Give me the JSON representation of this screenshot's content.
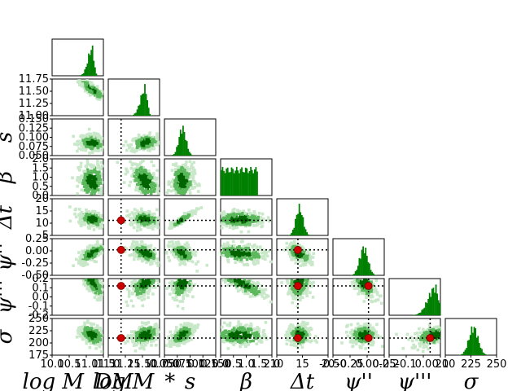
{
  "chart_data": {
    "type": "corner",
    "parameters": [
      "logM_DM",
      "logM_*",
      "s",
      "β",
      "Δt",
      "ψ''",
      "ψ'''",
      "σ"
    ],
    "axis_labels_x": [
      "log M_DM",
      "log M_*",
      "s",
      "β",
      "Δt",
      "ψ''",
      "ψ'''",
      "σ"
    ],
    "axis_labels_y": [
      "",
      "",
      "s",
      "β",
      "Δt",
      "ψ''",
      "ψ'''",
      "σ"
    ],
    "ranges": {
      "logM_DM": [
        10.0,
        11.5
      ],
      "logM_*": [
        11.0,
        11.8
      ],
      "s": [
        0.05,
        0.15
      ],
      "β": [
        0.0,
        2.0
      ],
      "Δt": [
        3,
        20
      ],
      "ψ''": [
        -0.5,
        0.25
      ],
      "ψ'''": [
        -0.2,
        0.15
      ],
      "σ": [
        175,
        250
      ]
    },
    "x_tick_labels": [
      [
        "10.0",
        "10.5",
        "11.0",
        "11.5"
      ],
      [
        "11.0",
        "11.25",
        "11.50",
        "11.75"
      ],
      [
        "0.050",
        "0.075",
        "0.100",
        "0.125",
        "0.150"
      ],
      [
        "0.0",
        "0.5",
        "1.0",
        "1.5",
        "2.0"
      ],
      [
        "10",
        "15",
        "20"
      ],
      [
        "-0.50",
        "-0.25",
        "0.00",
        "0.25"
      ],
      [
        "-0.2",
        "-0.1",
        "0.0",
        "0.1"
      ],
      [
        "200",
        "225",
        "250"
      ]
    ],
    "y_tick_labels": [
      [],
      [
        "11.00",
        "11.25",
        "11.50",
        "11.75"
      ],
      [
        "0.050",
        "0.075",
        "0.100",
        "0.125",
        "0.150"
      ],
      [
        "0.0",
        "0.5",
        "1.0",
        "1.5",
        "2.0"
      ],
      [
        "5",
        "10",
        "15",
        "20"
      ],
      [
        "-0.50",
        "-0.25",
        "0.00",
        "0.25"
      ],
      [
        "-0.2",
        "-0.1",
        "0.0",
        "0.1",
        "0.2"
      ],
      [
        "175",
        "200",
        "225",
        "250"
      ]
    ],
    "truth_values": {
      "logM_*": 11.2,
      "Δt": 10,
      "ψ''": 0.02,
      "ψ'''": 0.08,
      "σ": 210
    },
    "marginal_peaks": {
      "logM_DM": 11.15,
      "logM_*": 11.58,
      "s": 0.088,
      "β": "flat 0.0–1.5",
      "Δt": 10.5,
      "ψ''": -0.05,
      "ψ'''": 0.12,
      "σ": 218
    },
    "colors": {
      "hist": "#008000",
      "contour_dark": "#006400",
      "contour_mid": "#5cb85c",
      "contour_light": "#c9e8c9",
      "truth": "#cc0000",
      "truth_line": "#000000"
    }
  }
}
